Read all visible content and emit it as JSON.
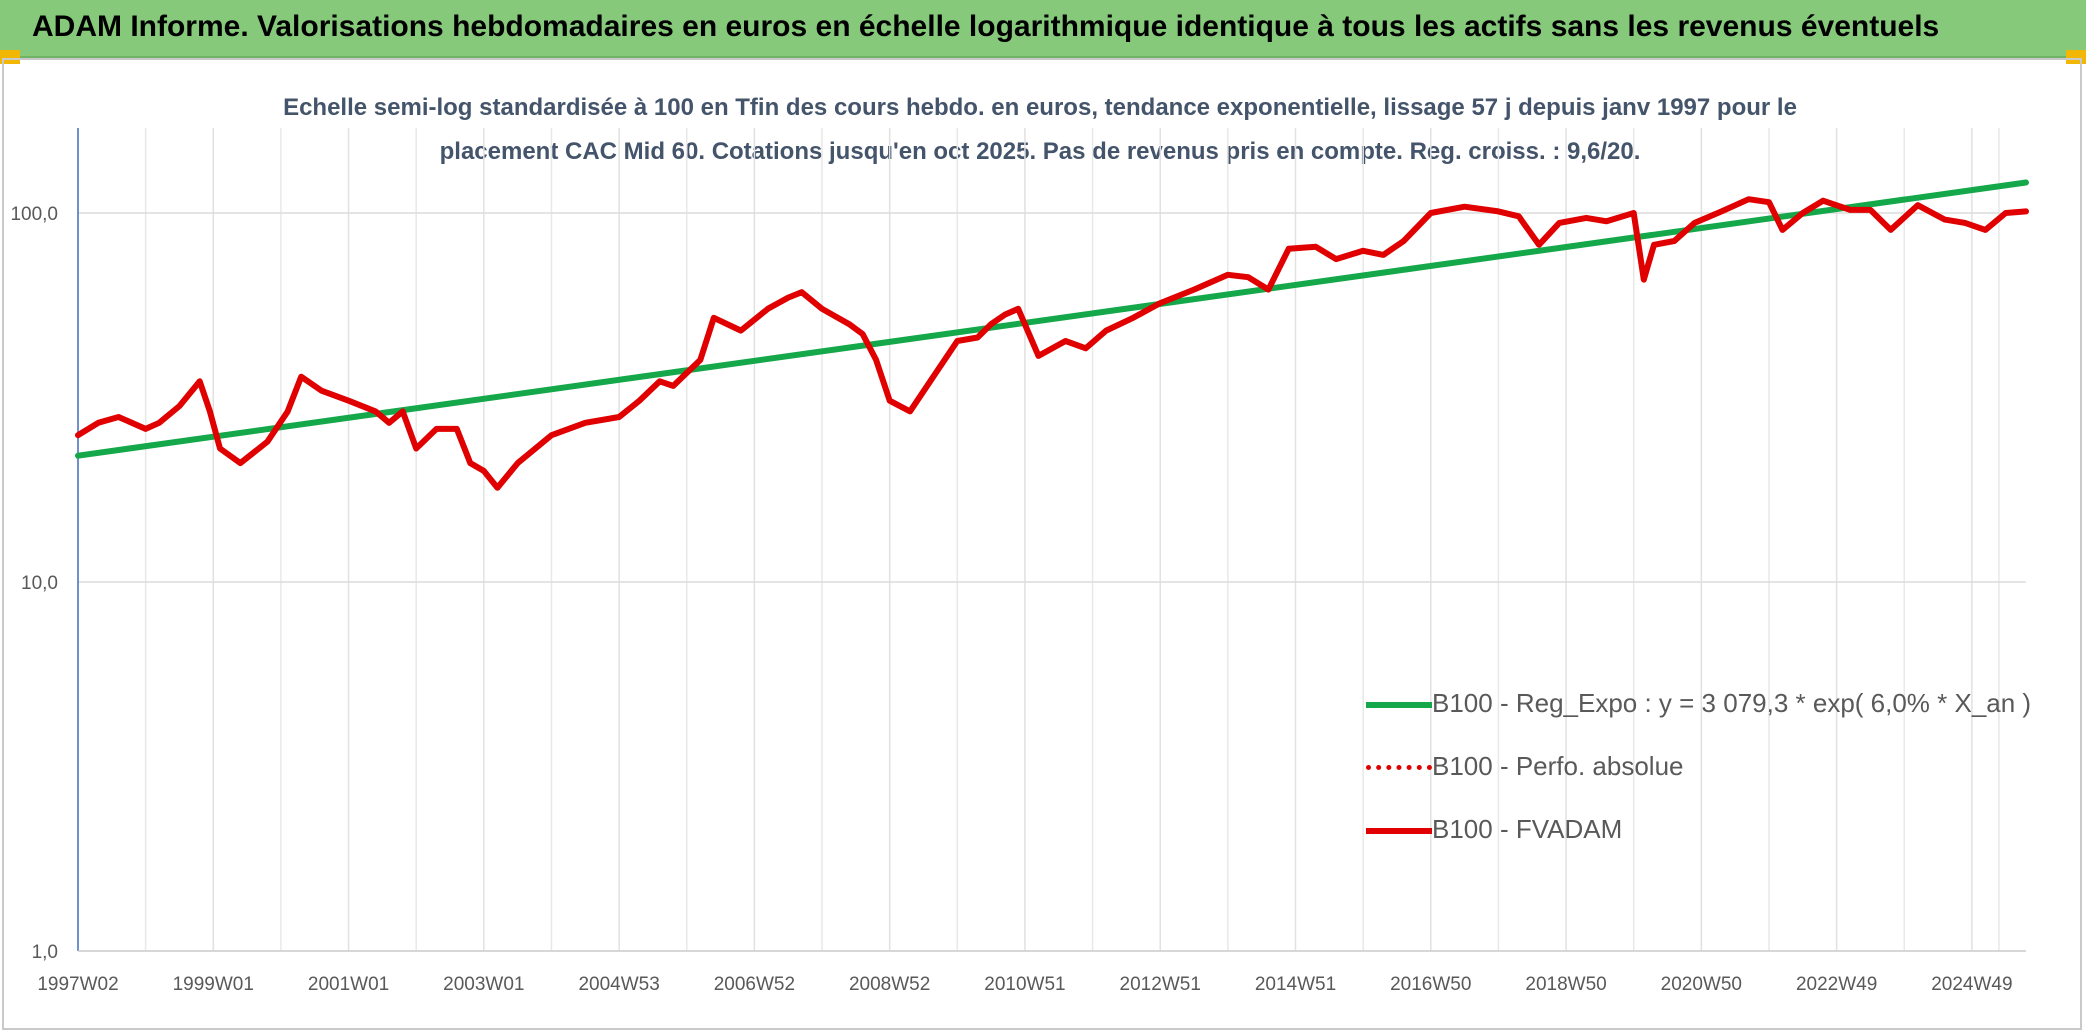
{
  "banner": {
    "title": "ADAM Informe. Valorisations hebdomadaires en euros en échelle logarithmique identique à tous les actifs sans les revenus éventuels",
    "colors": {
      "background": "#86c97b",
      "corner": "#f2b705"
    }
  },
  "chart_data": {
    "type": "line",
    "title_line1": "Echelle semi-log standardisée à 100 en Tfin des cours hebdo. en euros, tendance exponentielle, lissage 57 j depuis janv 1997 pour le",
    "title_line2": "placement CAC Mid 60. Cotations jusqu'en oct 2025. Pas de revenus pris en compte. Reg. croiss. : 9,6/20.",
    "y_scale": "log",
    "ylim": [
      1,
      170
    ],
    "y_ticks": [
      {
        "value": 1,
        "label": "1,0"
      },
      {
        "value": 10,
        "label": "10,0"
      },
      {
        "value": 100,
        "label": "100,0"
      }
    ],
    "xlim": [
      1997.0,
      2025.8
    ],
    "x_ticks": [
      {
        "t": 1997.0,
        "label": "1997W02"
      },
      {
        "t": 1999.0,
        "label": "1999W01"
      },
      {
        "t": 2001.0,
        "label": "2001W01"
      },
      {
        "t": 2003.0,
        "label": "2003W01"
      },
      {
        "t": 2005.0,
        "label": "2004W53"
      },
      {
        "t": 2007.0,
        "label": "2006W52"
      },
      {
        "t": 2009.0,
        "label": "2008W52"
      },
      {
        "t": 2011.0,
        "label": "2010W51"
      },
      {
        "t": 2013.0,
        "label": "2012W51"
      },
      {
        "t": 2015.0,
        "label": "2014W51"
      },
      {
        "t": 2017.0,
        "label": "2016W50"
      },
      {
        "t": 2019.0,
        "label": "2018W50"
      },
      {
        "t": 2021.0,
        "label": "2020W50"
      },
      {
        "t": 2023.0,
        "label": "2022W49"
      },
      {
        "t": 2025.0,
        "label": "2024W49"
      }
    ],
    "grid": true,
    "legend_position": "bottom-right",
    "series": [
      {
        "name": "B100 - Reg_Expo : y = 3 079,3 * exp( 6,0% *  X_an )",
        "style": "solid",
        "color": "#14a84a",
        "t": [
          1997.0,
          2025.8
        ],
        "values": [
          22,
          121
        ]
      },
      {
        "name": "B100 - Perfo. absolue",
        "style": "dotted",
        "color": "#e00000",
        "t": [],
        "values": []
      },
      {
        "name": "B100 - FVADAM",
        "style": "solid",
        "color": "#e00000",
        "t": [
          1997.0,
          1997.3,
          1997.6,
          1998.0,
          1998.2,
          1998.5,
          1998.8,
          1998.95,
          1999.1,
          1999.4,
          1999.8,
          2000.1,
          2000.3,
          2000.6,
          2001.0,
          2001.4,
          2001.6,
          2001.8,
          2002.0,
          2002.3,
          2002.6,
          2002.8,
          2003.0,
          2003.2,
          2003.5,
          2004.0,
          2004.5,
          2005.0,
          2005.3,
          2005.6,
          2005.8,
          2006.2,
          2006.4,
          2006.8,
          2007.2,
          2007.5,
          2007.7,
          2008.0,
          2008.4,
          2008.6,
          2008.8,
          2009.0,
          2009.3,
          2009.6,
          2010.0,
          2010.3,
          2010.5,
          2010.7,
          2010.9,
          2011.2,
          2011.6,
          2011.9,
          2012.2,
          2012.6,
          2013.0,
          2013.5,
          2014.0,
          2014.3,
          2014.6,
          2014.9,
          2015.3,
          2015.6,
          2016.0,
          2016.3,
          2016.6,
          2017.0,
          2017.5,
          2018.0,
          2018.3,
          2018.6,
          2018.9,
          2019.3,
          2019.6,
          2020.0,
          2020.15,
          2020.3,
          2020.6,
          2020.9,
          2021.3,
          2021.7,
          2022.0,
          2022.2,
          2022.5,
          2022.8,
          2023.2,
          2023.5,
          2023.8,
          2024.2,
          2024.6,
          2024.9,
          2025.2,
          2025.5,
          2025.8
        ],
        "values": [
          25,
          27,
          28,
          26,
          27,
          30,
          35,
          29,
          23,
          21,
          24,
          29,
          36,
          33,
          31,
          29,
          27,
          29,
          23,
          26,
          26,
          21,
          20,
          18,
          21,
          25,
          27,
          28,
          31,
          35,
          34,
          40,
          52,
          48,
          55,
          59,
          61,
          55,
          50,
          47,
          40,
          31,
          29,
          35,
          45,
          46,
          50,
          53,
          55,
          41,
          45,
          43,
          48,
          52,
          57,
          62,
          68,
          67,
          62,
          80,
          81,
          75,
          79,
          77,
          84,
          100,
          104,
          101,
          98,
          82,
          94,
          97,
          95,
          100,
          66,
          82,
          84,
          94,
          101,
          109,
          107,
          90,
          100,
          108,
          102,
          102,
          90,
          105,
          96,
          94,
          90,
          100,
          101
        ]
      }
    ]
  }
}
